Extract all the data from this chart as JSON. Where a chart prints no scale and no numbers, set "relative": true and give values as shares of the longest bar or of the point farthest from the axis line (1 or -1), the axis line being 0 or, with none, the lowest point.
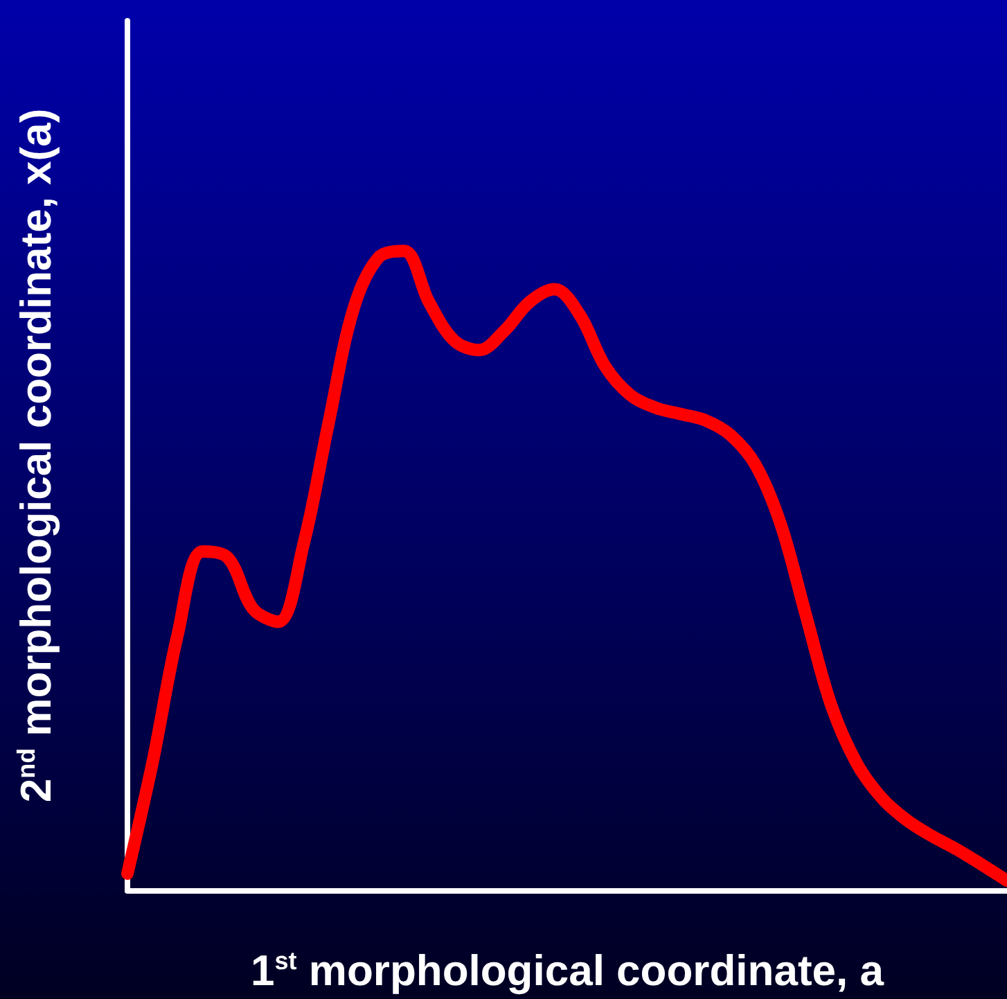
{
  "chart_data": {
    "type": "line",
    "relative": true,
    "xlabel": "1$^{st}$ morphological coordinate, a",
    "ylabel": "2$^{nd}$ morphological coordinate, x(a)",
    "categories": [
      null,
      null,
      null,
      null,
      null,
      null,
      null,
      null,
      null,
      null,
      null,
      null,
      null,
      null,
      null,
      null,
      null,
      null,
      null,
      null,
      null,
      null,
      null,
      null,
      null,
      null,
      null,
      null,
      null,
      null,
      null,
      null,
      null,
      null,
      null,
      null
    ],
    "series": [
      {
        "color": "#ff0000",
        "values": [
          0.026,
          0.2,
          0.4,
          0.53,
          0.52,
          0.44,
          0.42,
          0.54,
          0.73,
          0.91,
          0.99,
          1,
          0.92,
          0.86,
          0.845,
          0.875,
          0.92,
          0.94,
          0.9,
          0.82,
          0.775,
          0.755,
          0.745,
          0.735,
          0.712,
          0.665,
          0.572,
          0.43,
          0.29,
          0.2,
          0.145,
          0.11,
          0.085,
          0.064,
          0.04,
          0.015
        ]
      }
    ],
    "grid": false,
    "tick_labels": false
  }
}
